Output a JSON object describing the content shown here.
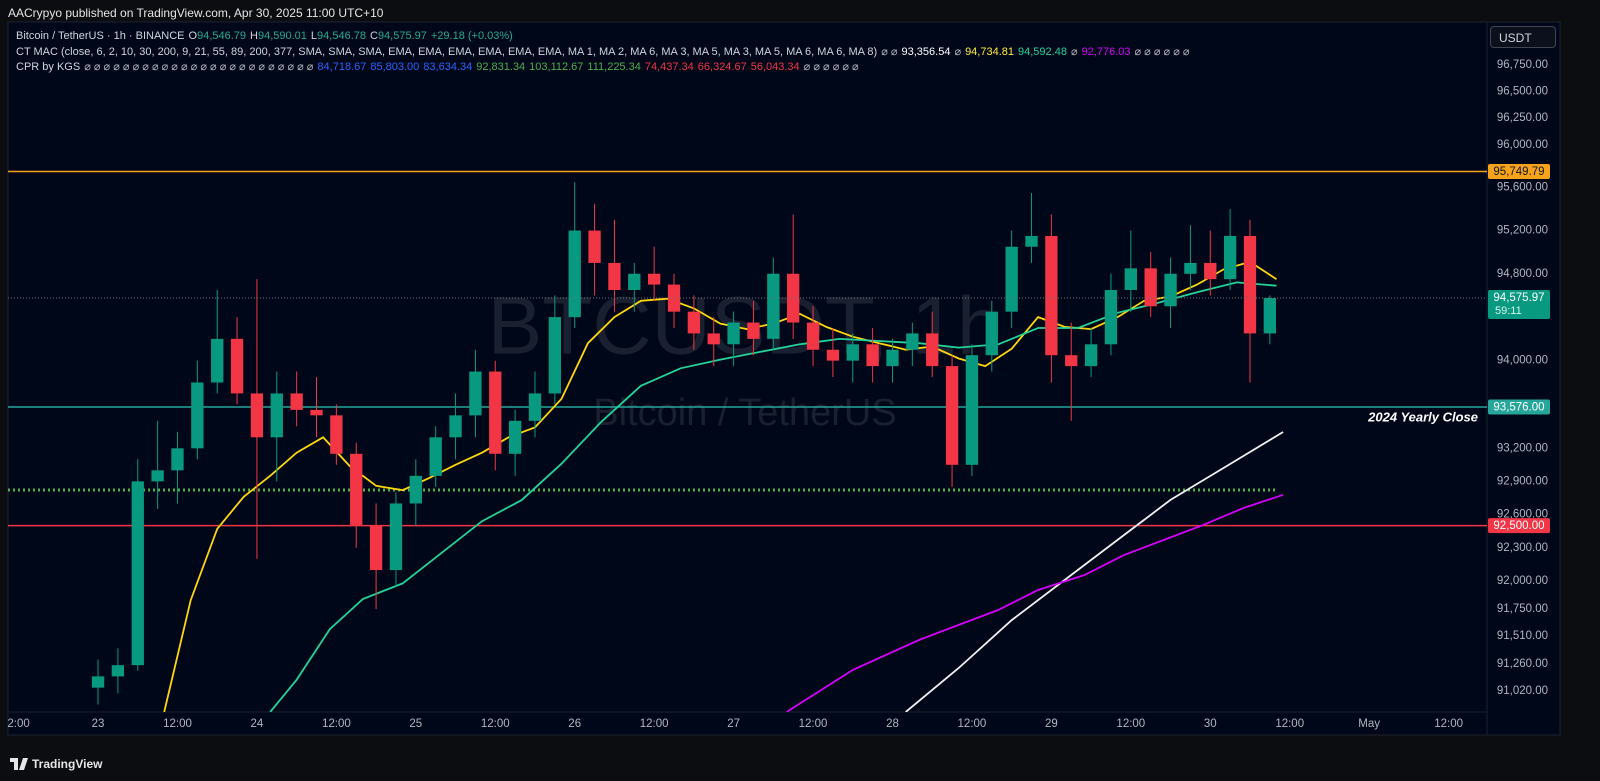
{
  "header": "AACrypyo published on TradingView.com, Apr 30, 2025 11:00 UTC+10",
  "legend": {
    "symbol": {
      "text": "Bitcoin / TetherUS · 1h · BINANCE",
      "items": [
        {
          "text": "O",
          "color": "#d1d4dc"
        },
        {
          "text": "94,546.79",
          "color": "#22ab94"
        },
        {
          "text": "H",
          "color": "#d1d4dc"
        },
        {
          "text": "94,590.01",
          "color": "#22ab94"
        },
        {
          "text": "L",
          "color": "#d1d4dc"
        },
        {
          "text": "94,546.78",
          "color": "#22ab94"
        },
        {
          "text": "C",
          "color": "#d1d4dc"
        },
        {
          "text": "94,575.97",
          "color": "#22ab94"
        },
        {
          "text": "+29.18 (+0.03%)",
          "color": "#22ab94"
        }
      ]
    },
    "indicator_1": {
      "text": "CT MAC (close, 6, 2, 10, 30, 200, 9, 21, 55, 89, 200, 377, SMA, SMA, SMA, EMA, EMA, EMA, EMA, EMA, EMA, MA 1, MA 2, MA 6, MA 3, MA 5, MA 3, MA 5, MA 6, MA 6, MA 8)",
      "items": [
        {
          "text": "⌀ ⌀",
          "color": "#b2b5be"
        },
        {
          "text": "93,356.54",
          "color": "#ffffff"
        },
        {
          "text": "⌀",
          "color": "#b2b5be"
        },
        {
          "text": "94,734.81",
          "color": "#ffeb3b"
        },
        {
          "text": "94,592.48",
          "color": "#22d39a"
        },
        {
          "text": "⌀",
          "color": "#b2b5be"
        },
        {
          "text": "92,776.03",
          "color": "#d500f9"
        },
        {
          "text": "⌀ ⌀ ⌀ ⌀ ⌀ ⌀",
          "color": "#b2b5be"
        }
      ]
    },
    "indicator_2": {
      "text": "CPR by KGS",
      "items": [
        {
          "text": "⌀ ⌀ ⌀ ⌀ ⌀ ⌀ ⌀ ⌀ ⌀ ⌀ ⌀ ⌀ ⌀ ⌀ ⌀ ⌀ ⌀ ⌀ ⌀ ⌀ ⌀ ⌀ ⌀ ⌀",
          "color": "#b2b5be"
        },
        {
          "text": "84,718.67",
          "color": "#2962ff"
        },
        {
          "text": "85,803.00",
          "color": "#2962ff"
        },
        {
          "text": "83,634.34",
          "color": "#2962ff"
        },
        {
          "text": "92,831.34",
          "color": "#4caf50"
        },
        {
          "text": "103,112.67",
          "color": "#4caf50"
        },
        {
          "text": "111,225.34",
          "color": "#4caf50"
        },
        {
          "text": "74,437.34",
          "color": "#f23645"
        },
        {
          "text": "66,324.67",
          "color": "#f23645"
        },
        {
          "text": "56,043.34",
          "color": "#f23645"
        },
        {
          "text": "⌀ ⌀ ⌀ ⌀ ⌀ ⌀",
          "color": "#b2b5be"
        }
      ]
    }
  },
  "currency_button": "USDT",
  "footer": "TradingView",
  "chart_data": {
    "type": "candlestick",
    "watermark": {
      "symbol": "BTCUSDT, 1h",
      "description": "Bitcoin / TetherUS"
    },
    "log": true,
    "up_color": "#089981",
    "down_color": "#f23645",
    "xlim": [
      -13.6,
      209.8
    ],
    "ylim": [
      90834,
      97156
    ],
    "xticks": [
      {
        "value": -12,
        "label": "2:00"
      },
      {
        "value": 0,
        "label": "23"
      },
      {
        "value": 12,
        "label": "12:00"
      },
      {
        "value": 24,
        "label": "24"
      },
      {
        "value": 36,
        "label": "12:00"
      },
      {
        "value": 48,
        "label": "25"
      },
      {
        "value": 60,
        "label": "12:00"
      },
      {
        "value": 72,
        "label": "26"
      },
      {
        "value": 84,
        "label": "12:00"
      },
      {
        "value": 96,
        "label": "27"
      },
      {
        "value": 108,
        "label": "12:00"
      },
      {
        "value": 120,
        "label": "28"
      },
      {
        "value": 132,
        "label": "12:00"
      },
      {
        "value": 144,
        "label": "29"
      },
      {
        "value": 156,
        "label": "12:00"
      },
      {
        "value": 168,
        "label": "30"
      },
      {
        "value": 180,
        "label": "12:00"
      },
      {
        "value": 192,
        "label": "May"
      },
      {
        "value": 204,
        "label": "12:00"
      }
    ],
    "yticks": [
      {
        "value": 96750,
        "label": "96,750.00"
      },
      {
        "value": 96500,
        "label": "96,500.00"
      },
      {
        "value": 96250,
        "label": "96,250.00"
      },
      {
        "value": 96000,
        "label": "96,000.00"
      },
      {
        "value": 95600,
        "label": "95,600.00"
      },
      {
        "value": 95200,
        "label": "95,200.00"
      },
      {
        "value": 94800,
        "label": "94,800.00"
      },
      {
        "value": 94000,
        "label": "94,000.00"
      },
      {
        "value": 93200,
        "label": "93,200.00"
      },
      {
        "value": 92900,
        "label": "92,900.00"
      },
      {
        "value": 92600,
        "label": "92,600.00"
      },
      {
        "value": 92300,
        "label": "92,300.00"
      },
      {
        "value": 92000,
        "label": "92,000.00"
      },
      {
        "value": 91750,
        "label": "91,750.00"
      },
      {
        "value": 91510,
        "label": "91,510.00"
      },
      {
        "value": 91260,
        "label": "91,260.00"
      },
      {
        "value": 91020,
        "label": "91,020.00"
      }
    ],
    "x": [
      0,
      3,
      6,
      9,
      12,
      15,
      18,
      21,
      24,
      27,
      30,
      33,
      36,
      39,
      42,
      45,
      48,
      51,
      54,
      57,
      60,
      63,
      66,
      69,
      72,
      75,
      78,
      81,
      84,
      87,
      90,
      93,
      96,
      99,
      102,
      105,
      108,
      111,
      114,
      117,
      120,
      123,
      126,
      129,
      132,
      135,
      138,
      141,
      144,
      147,
      150,
      153,
      156,
      159,
      162,
      165,
      168,
      171,
      174,
      177
    ],
    "open": [
      91050,
      91150,
      91250,
      92900,
      93000,
      93200,
      93800,
      94200,
      93700,
      93300,
      93700,
      93550,
      93500,
      93150,
      92500,
      92100,
      92700,
      92950,
      93300,
      93500,
      93900,
      93150,
      93450,
      93700,
      94400,
      95200,
      94900,
      94650,
      94800,
      94700,
      94450,
      94250,
      94150,
      94350,
      94200,
      94800,
      94350,
      94100,
      94000,
      94150,
      93950,
      94100,
      94250,
      93950,
      93050,
      94050,
      94450,
      95050,
      95150,
      94050,
      93950,
      94150,
      94650,
      94850,
      94500,
      94800,
      94900,
      94750,
      95150,
      94250
    ],
    "high": [
      91300,
      91400,
      93100,
      93450,
      93350,
      94000,
      94650,
      94400,
      94750,
      93900,
      93900,
      93850,
      93600,
      93250,
      92700,
      92800,
      93100,
      93400,
      93700,
      94100,
      94000,
      93550,
      93900,
      94600,
      95650,
      95450,
      95300,
      94900,
      95050,
      94800,
      94600,
      94400,
      94450,
      94550,
      94950,
      95350,
      94500,
      94300,
      94250,
      94300,
      94200,
      94350,
      94450,
      94050,
      94150,
      94550,
      95200,
      95550,
      95350,
      94350,
      94300,
      94800,
      95200,
      95000,
      94950,
      95250,
      95200,
      95400,
      95300,
      94600
    ],
    "low": [
      90900,
      91000,
      91200,
      92650,
      92700,
      93100,
      93700,
      93600,
      92200,
      92900,
      93400,
      93300,
      93050,
      92300,
      91750,
      91950,
      92500,
      92850,
      93100,
      93300,
      93000,
      92950,
      93300,
      93600,
      94300,
      94600,
      94450,
      94450,
      94550,
      94300,
      94100,
      93950,
      93950,
      94050,
      94100,
      94200,
      93950,
      93850,
      93800,
      93800,
      93800,
      93950,
      93850,
      92850,
      92950,
      93900,
      94300,
      94900,
      93800,
      93450,
      93850,
      94050,
      94450,
      94400,
      94300,
      94650,
      94600,
      94650,
      93800,
      94150
    ],
    "close": [
      91150,
      91250,
      92900,
      93000,
      93200,
      93800,
      94200,
      93700,
      93300,
      93700,
      93550,
      93500,
      93150,
      92500,
      92100,
      92700,
      92950,
      93300,
      93500,
      93900,
      93150,
      93450,
      93700,
      94400,
      95200,
      94900,
      94650,
      94800,
      94700,
      94450,
      94250,
      94150,
      94350,
      94200,
      94800,
      94350,
      94100,
      94000,
      94150,
      93950,
      94100,
      94250,
      93950,
      93050,
      94050,
      94450,
      95050,
      95150,
      94050,
      93950,
      94150,
      94650,
      94850,
      94500,
      94800,
      94900,
      94750,
      95150,
      94250,
      94575.97
    ],
    "series": [
      {
        "color": "#ffd60a",
        "x": [
          10,
          14,
          18,
          22,
          26,
          30,
          34,
          38,
          42,
          46,
          50,
          54,
          58,
          62,
          66,
          70,
          74,
          78,
          82,
          86,
          90,
          94,
          98,
          102,
          106,
          110,
          114,
          118,
          122,
          126,
          130,
          134,
          138,
          142,
          146,
          150,
          154,
          158,
          162,
          166,
          170,
          174,
          178
        ],
        "values": [
          90834,
          91830,
          92470,
          92760,
          92950,
          93160,
          93300,
          93040,
          92860,
          92820,
          92930,
          93050,
          93160,
          93300,
          93390,
          93650,
          94160,
          94400,
          94550,
          94570,
          94480,
          94340,
          94290,
          94340,
          94430,
          94310,
          94220,
          94160,
          94100,
          94130,
          94020,
          93950,
          94110,
          94400,
          94310,
          94290,
          94400,
          94550,
          94590,
          94700,
          94840,
          94910,
          94750
        ]
      },
      {
        "color": "#22d39a",
        "x": [
          26,
          30,
          35,
          40,
          46,
          52,
          58,
          64,
          70,
          76,
          82,
          88,
          94,
          100,
          106,
          112,
          118,
          124,
          130,
          136,
          142,
          148,
          154,
          160,
          166,
          172,
          178
        ],
        "values": [
          90834,
          91120,
          91570,
          91840,
          91980,
          92260,
          92540,
          92730,
          93060,
          93440,
          93770,
          93930,
          94010,
          94080,
          94150,
          94200,
          94180,
          94160,
          94120,
          94150,
          94300,
          94300,
          94440,
          94530,
          94630,
          94720,
          94690
        ]
      },
      {
        "color": "#f0f0f0",
        "x": [
          122,
          130,
          138,
          146,
          154,
          162,
          170,
          179
        ],
        "values": [
          90834,
          91225,
          91652,
          92011,
          92371,
          92732,
          93021,
          93348
        ]
      },
      {
        "color": "#d500f9",
        "x": [
          104,
          114,
          124,
          130,
          136,
          142,
          149,
          155,
          161,
          167,
          173,
          179
        ],
        "values": [
          90834,
          91208,
          91474,
          91609,
          91743,
          91921,
          92056,
          92236,
          92371,
          92507,
          92659,
          92778
        ]
      }
    ],
    "hlines": [
      {
        "value": 95749.79,
        "label": "95,749.79",
        "color": "#f7a21b",
        "label_text_color": "#131722"
      },
      {
        "value": 93576,
        "label": "93,576.00",
        "color": "#26a69a",
        "label_text_color": "#ffffff",
        "annotation": "2024 Yearly Close"
      },
      {
        "value": 92500,
        "label": "92,500.00",
        "color": "#f23645",
        "label_text_color": "#ffffff"
      },
      {
        "value": 92822,
        "color": "#4caf50",
        "style": "dotted"
      }
    ],
    "last_price": {
      "value": 94575.97,
      "label": "94,575.97",
      "countdown": "59:11",
      "color": "#089981"
    }
  }
}
